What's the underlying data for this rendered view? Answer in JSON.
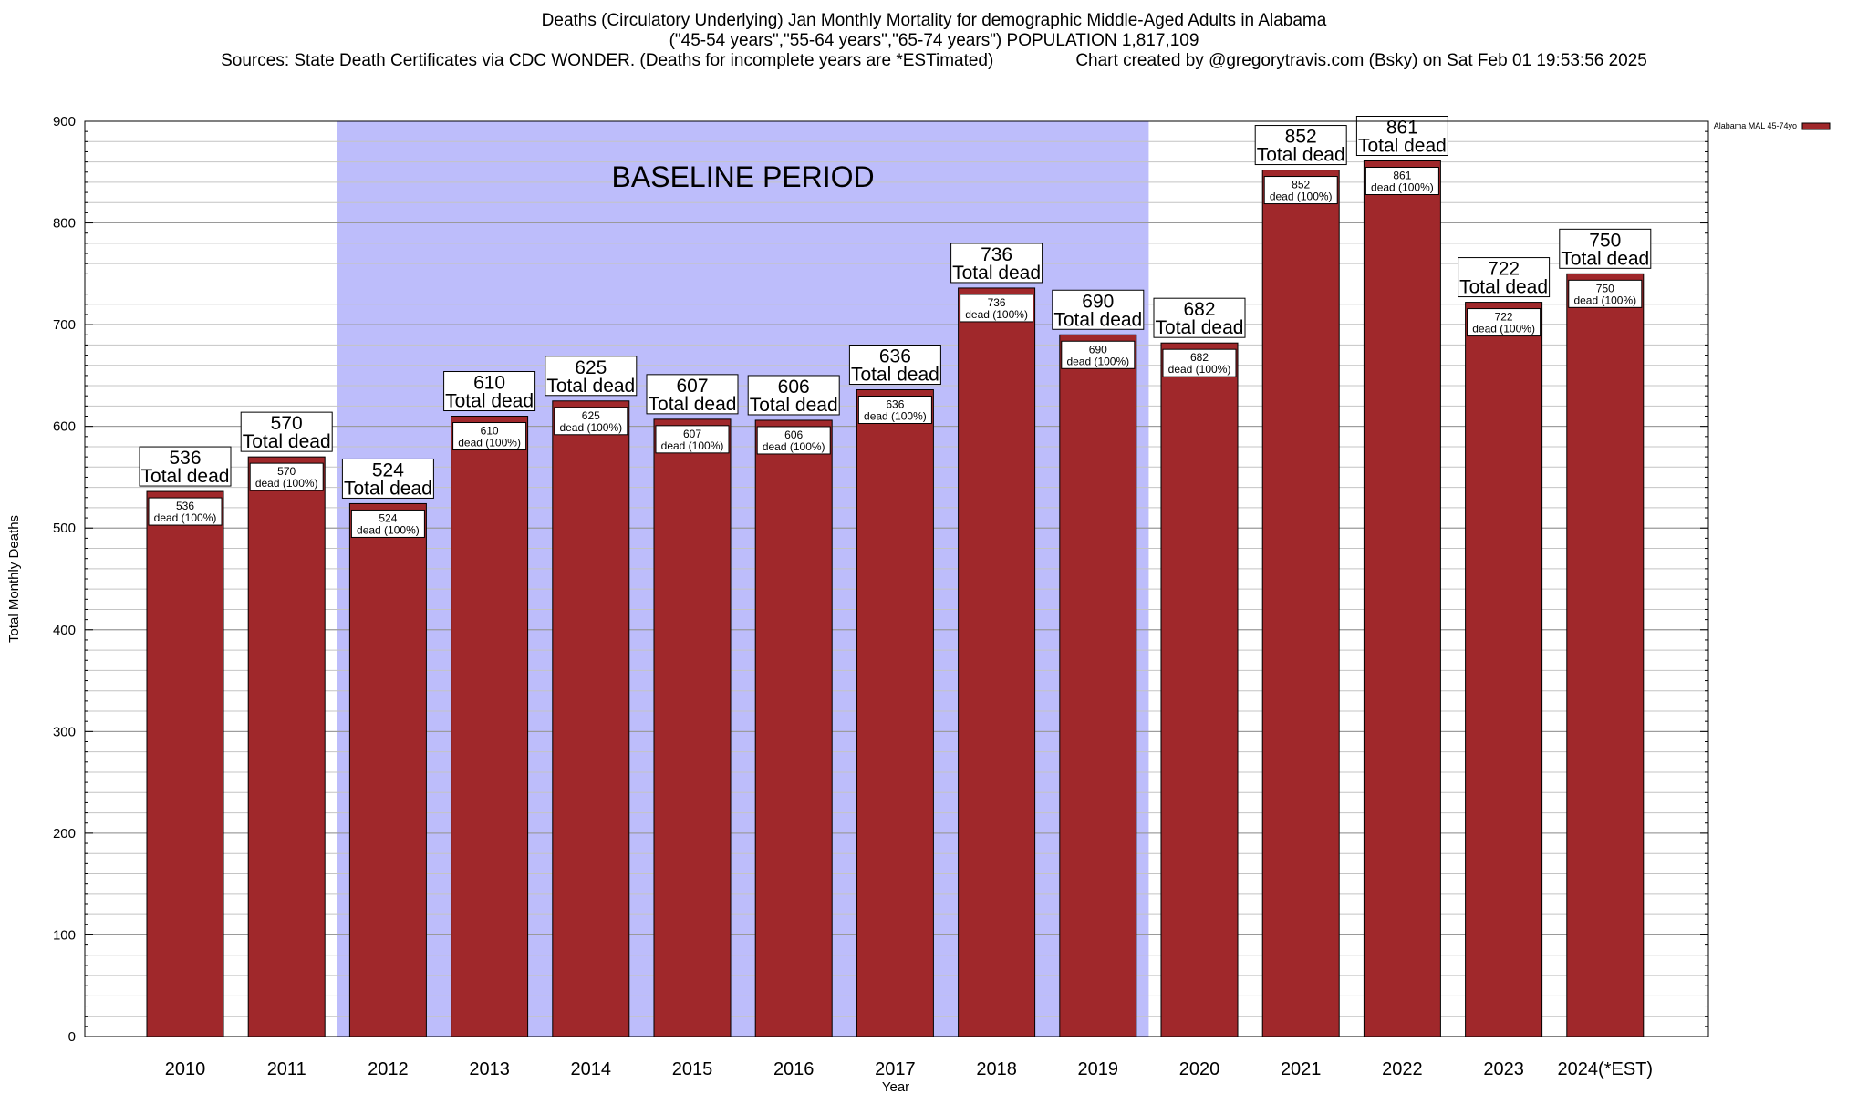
{
  "header": {
    "title_line1": "Deaths (Circulatory Underlying) Jan Monthly Mortality for demographic Middle-Aged Adults in Alabama",
    "title_line2": "(\"45-54 years\",\"55-64 years\",\"65-74 years\") POPULATION 1,817,109",
    "sources": "Sources: State Death Certificates via CDC WONDER. (Deaths for incomplete years are *ESTimated)",
    "credit": "Chart created by @gregorytravis.com (Bsky) on Sat Feb 01 19:53:56 2025"
  },
  "chart_data": {
    "type": "bar",
    "xlabel": "Year",
    "ylabel": "Total Monthly Deaths",
    "ylim": [
      0,
      900
    ],
    "y_major_ticks": [
      0,
      100,
      200,
      300,
      400,
      500,
      600,
      700,
      800,
      900
    ],
    "y_minor_step": 20,
    "grid": true,
    "categories": [
      "2010",
      "2011",
      "2012",
      "2013",
      "2014",
      "2015",
      "2016",
      "2017",
      "2018",
      "2019",
      "2020",
      "2021",
      "2022",
      "2023",
      "2024(*EST)"
    ],
    "series": [
      {
        "name": "Alabama MAL 45-74yo",
        "color": "#a0282b",
        "values": [
          536,
          570,
          524,
          610,
          625,
          607,
          606,
          636,
          736,
          690,
          682,
          852,
          861,
          722,
          750
        ]
      }
    ],
    "total_label_suffix": "Total dead",
    "inner_label_suffix": "dead (100%)",
    "legend": {
      "label": "Alabama MAL 45-74yo",
      "position": "top-right"
    },
    "baseline": {
      "label": "BASELINE PERIOD",
      "start_category": "2012",
      "end_category": "2019",
      "color": "#bdbdfb"
    }
  }
}
